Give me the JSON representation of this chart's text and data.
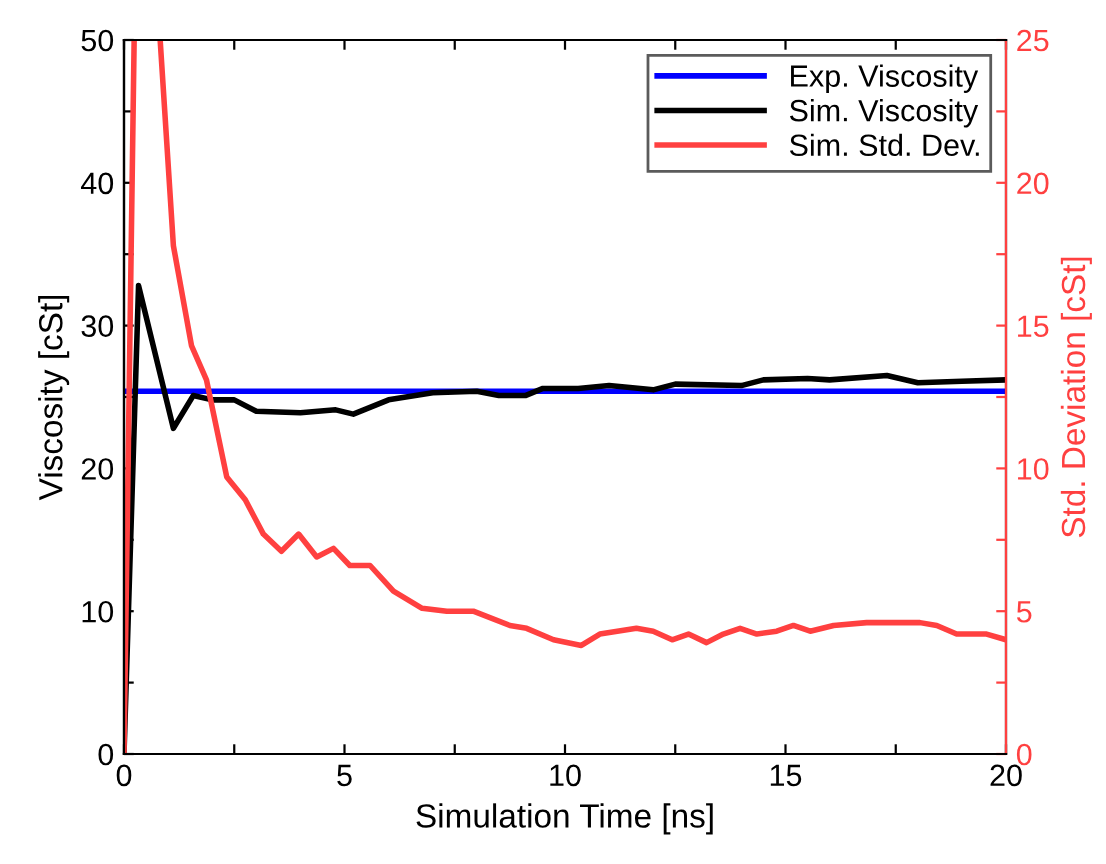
{
  "chart_data": {
    "type": "line",
    "xlabel": "Simulation Time [ns]",
    "ylabel": "Viscosity [cSt]",
    "y2label": "Std. Deviation [cSt]",
    "xlim": [
      0,
      20
    ],
    "ylim": [
      0,
      50
    ],
    "y2lim": [
      0,
      25
    ],
    "xticks": [
      0,
      {
        "value": 2.5,
        "label": null
      },
      5,
      {
        "value": 7.5,
        "label": null
      },
      10,
      {
        "value": 12.5,
        "label": null
      },
      15,
      {
        "value": 17.5,
        "label": null
      },
      20
    ],
    "yticks": [
      0,
      {
        "value": 5,
        "label": null
      },
      10,
      {
        "value": 15,
        "label": null
      },
      20,
      {
        "value": 25,
        "label": null
      },
      30,
      {
        "value": 35,
        "label": null
      },
      40,
      {
        "value": 45,
        "label": null
      },
      50
    ],
    "y2ticks": [
      0,
      {
        "value": 2.5,
        "label": null
      },
      5,
      {
        "value": 7.5,
        "label": null
      },
      10,
      {
        "value": 12.5,
        "label": null
      },
      15,
      {
        "value": 17.5,
        "label": null
      },
      20,
      {
        "value": 22.5,
        "label": null
      },
      25
    ],
    "grid": false,
    "legend": "top right",
    "marker": "none",
    "line_style": "solid",
    "series": [
      {
        "name": "Exp. Viscosity",
        "color": "#0000ff",
        "x": [
          0,
          20
        ],
        "values": [
          25.4,
          25.4
        ]
      },
      {
        "name": "Sim. Viscosity",
        "color": "#000000",
        "x": [
          0,
          0.33,
          1.12,
          1.57,
          2.0,
          2.5,
          3.0,
          4.0,
          4.8,
          5.2,
          6.0,
          7.0,
          8.0,
          8.5,
          9.1,
          9.5,
          10.3,
          11.0,
          12.0,
          12.5,
          14.0,
          14.5,
          15.5,
          16.0,
          17.3,
          18.0,
          19.0,
          20.0
        ],
        "values": [
          0,
          32.8,
          22.8,
          25.1,
          24.8,
          24.8,
          24.0,
          23.9,
          24.1,
          23.8,
          24.8,
          25.3,
          25.4,
          25.1,
          25.1,
          25.6,
          25.6,
          25.8,
          25.5,
          25.9,
          25.8,
          26.2,
          26.3,
          26.2,
          26.5,
          26.0,
          26.1,
          26.2
        ]
      },
      {
        "name": "Sim. Std. Dev.",
        "color": "#ff4040",
        "axis": "y2",
        "x": [
          0,
          0.23,
          0.5,
          0.82,
          1.12,
          1.53,
          1.87,
          2.33,
          2.75,
          3.16,
          3.57,
          3.96,
          4.37,
          4.75,
          5.12,
          5.58,
          6.11,
          6.76,
          7.32,
          7.92,
          8.75,
          9.13,
          9.74,
          10.37,
          10.79,
          11.62,
          12.0,
          12.43,
          12.8,
          13.21,
          13.59,
          13.97,
          14.35,
          14.8,
          15.18,
          15.56,
          16.09,
          16.84,
          18.05,
          18.43,
          18.88,
          19.56,
          20.0
        ],
        "values": [
          0,
          25,
          null,
          25,
          17.8,
          14.3,
          13.1,
          9.7,
          8.9,
          7.7,
          7.1,
          7.7,
          6.9,
          7.2,
          6.6,
          6.6,
          5.7,
          5.1,
          5.0,
          5.0,
          4.5,
          4.4,
          4.0,
          3.8,
          4.2,
          4.4,
          4.3,
          4.0,
          4.2,
          3.9,
          4.2,
          4.4,
          4.2,
          4.3,
          4.5,
          4.3,
          4.5,
          4.6,
          4.6,
          4.5,
          4.2,
          4.2,
          4.0
        ]
      }
    ]
  }
}
